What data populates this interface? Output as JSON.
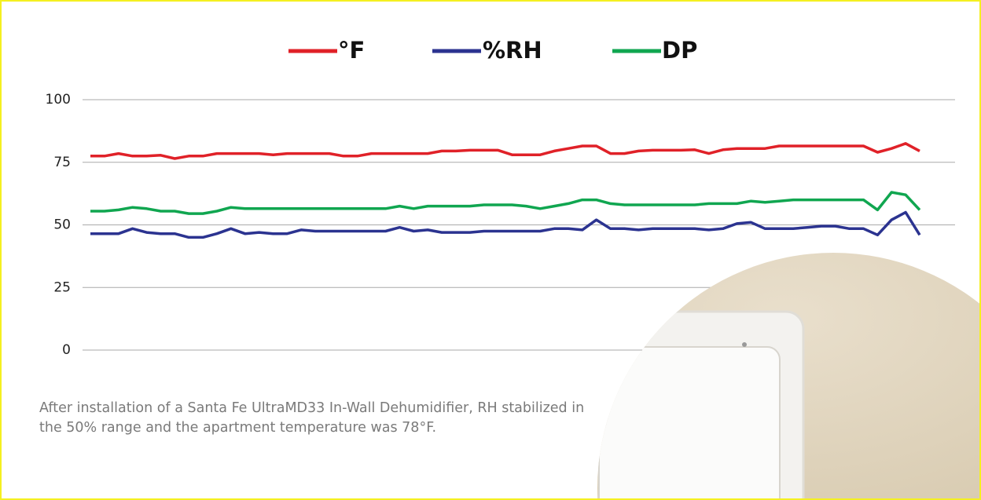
{
  "chart_data": {
    "type": "line",
    "categories": [
      null,
      null,
      null,
      null,
      null,
      null,
      null,
      null,
      null,
      null,
      null,
      null,
      null,
      null,
      null,
      null,
      null,
      null,
      null,
      null,
      null,
      null,
      null,
      null,
      null,
      null,
      null,
      null,
      null,
      null,
      null,
      null,
      null,
      null,
      null,
      null,
      null,
      null,
      null,
      null,
      null,
      null,
      null,
      null,
      null,
      null,
      null,
      null,
      null,
      null,
      null,
      null,
      null,
      null,
      null,
      null,
      null,
      null,
      null,
      null
    ],
    "series": [
      {
        "name": "°F",
        "color": "#e02128",
        "values": [
          77.5,
          77.5,
          78.5,
          77.5,
          77.5,
          77.8,
          76.5,
          77.5,
          77.5,
          78.5,
          78.5,
          78.5,
          78.5,
          78,
          78.5,
          78.5,
          78.5,
          78.5,
          77.5,
          77.5,
          78.5,
          78.5,
          78.5,
          78.5,
          78.5,
          79.5,
          79.5,
          79.8,
          79.8,
          79.8,
          78,
          78,
          78,
          79.5,
          80.5,
          81.5,
          81.5,
          78.5,
          78.5,
          79.5,
          79.8,
          79.8,
          79.8,
          80,
          78.5,
          80,
          80.5,
          80.5,
          80.5,
          81.5,
          81.5,
          81.5,
          81.5,
          81.5,
          81.5,
          81.5,
          79,
          80.5,
          82.5,
          79.5
        ]
      },
      {
        "name": "%RH",
        "color": "#2b3390",
        "values": [
          46.5,
          46.5,
          46.5,
          48.5,
          47,
          46.5,
          46.5,
          45,
          45,
          46.5,
          48.5,
          46.5,
          47,
          46.5,
          46.5,
          48,
          47.5,
          47.5,
          47.5,
          47.5,
          47.5,
          47.5,
          49,
          47.5,
          48,
          47,
          47,
          47,
          47.5,
          47.5,
          47.5,
          47.5,
          47.5,
          48.5,
          48.5,
          48,
          52,
          48.5,
          48.5,
          48,
          48.5,
          48.5,
          48.5,
          48.5,
          48,
          48.5,
          50.5,
          51,
          48.5,
          48.5,
          48.5,
          49,
          49.5,
          49.5,
          48.5,
          48.5,
          46,
          52,
          55,
          46
        ]
      },
      {
        "name": "DP",
        "color": "#10a650",
        "values": [
          55.5,
          55.5,
          56,
          57,
          56.5,
          55.5,
          55.5,
          54.5,
          54.5,
          55.5,
          57,
          56.5,
          56.5,
          56.5,
          56.5,
          56.5,
          56.5,
          56.5,
          56.5,
          56.5,
          56.5,
          56.5,
          57.5,
          56.5,
          57.5,
          57.5,
          57.5,
          57.5,
          58,
          58,
          58,
          57.5,
          56.5,
          57.5,
          58.5,
          60,
          60,
          58.5,
          58,
          58,
          58,
          58,
          58,
          58,
          58.5,
          58.5,
          58.5,
          59.5,
          59,
          59.5,
          60,
          60,
          60,
          60,
          60,
          60,
          56,
          63,
          62,
          56
        ]
      }
    ],
    "ylim": [
      0,
      100
    ],
    "yticks": [
      0,
      25,
      50,
      75,
      100
    ],
    "grid": true,
    "legend": "top",
    "caption": "After installation of a Santa Fe UltraMD33 In-Wall Dehumidifier, RH stabilized in the 50% range and the apartment temperature was 78°F."
  }
}
